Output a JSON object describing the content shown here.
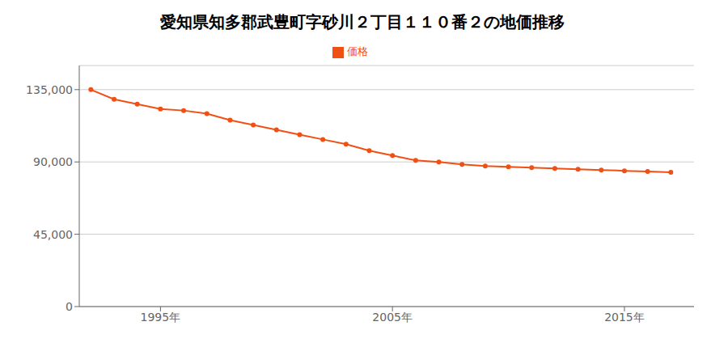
{
  "chart_data": {
    "type": "line",
    "title": "愛知県知多郡武豊町字砂川２丁目１１０番２の地価推移",
    "x": [
      1992,
      1993,
      1994,
      1995,
      1996,
      1997,
      1998,
      1999,
      2000,
      2001,
      2002,
      2003,
      2004,
      2005,
      2006,
      2007,
      2008,
      2009,
      2010,
      2011,
      2012,
      2013,
      2014,
      2015,
      2016,
      2017
    ],
    "series": [
      {
        "name": "価格",
        "color": "#f05014",
        "marker": "circle",
        "values": [
          135000,
          129000,
          126000,
          123000,
          122000,
          120000,
          116000,
          113000,
          110000,
          107000,
          104000,
          101000,
          97000,
          94000,
          91000,
          90000,
          88500,
          87500,
          87000,
          86500,
          86000,
          85500,
          85000,
          84500,
          84000,
          83500
        ]
      }
    ],
    "xlim": [
      1991.5,
      2018
    ],
    "ylim": [
      0,
      150000
    ],
    "xticks": [
      {
        "value": 1995,
        "label": "1995年"
      },
      {
        "value": 2005,
        "label": "2005年"
      },
      {
        "value": 2015,
        "label": "2015年"
      }
    ],
    "yticks": [
      0,
      {
        "value": 45000,
        "label": "45,000"
      },
      {
        "value": 90000,
        "label": "90,000"
      },
      {
        "value": 135000,
        "label": "135,000"
      }
    ],
    "grid": true,
    "legend": "top"
  }
}
